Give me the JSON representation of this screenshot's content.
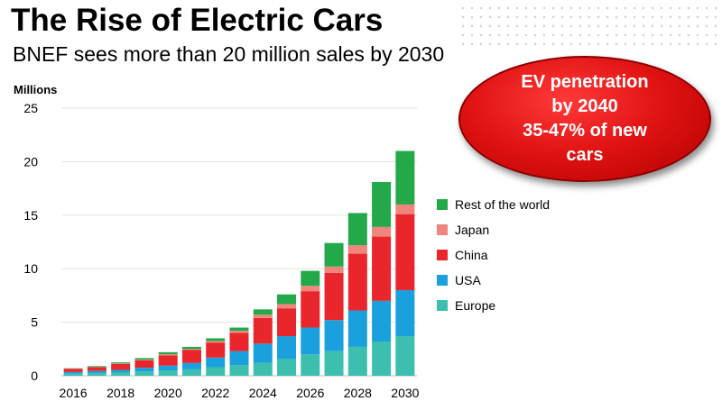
{
  "header": {
    "title": "The Rise of Electric Cars",
    "subtitle": "BNEF sees more than 20 million sales by 2030"
  },
  "callout": {
    "text": "EV penetration\nby 2040\n35-47% of new\ncars"
  },
  "chart_data": {
    "type": "bar",
    "stacked": true,
    "ylabel": "Millions",
    "ylim": [
      0,
      25
    ],
    "yticks": [
      0,
      5,
      10,
      15,
      20,
      25
    ],
    "grid": true,
    "legend_position": "right",
    "categories": [
      "2016",
      "2017",
      "2018",
      "2019",
      "2020",
      "2021",
      "2022",
      "2023",
      "2024",
      "2025",
      "2026",
      "2027",
      "2028",
      "2029",
      "2030"
    ],
    "x_tick_labels": [
      "2016",
      "2018",
      "2020",
      "2022",
      "2024",
      "2026",
      "2028",
      "2030"
    ],
    "series": [
      {
        "name": "Europe",
        "color": "#3cbfae",
        "values": [
          0.2,
          0.25,
          0.3,
          0.4,
          0.5,
          0.6,
          0.8,
          1.0,
          1.2,
          1.6,
          2.0,
          2.3,
          2.7,
          3.2,
          3.7
        ]
      },
      {
        "name": "USA",
        "color": "#1aa0dc",
        "values": [
          0.15,
          0.2,
          0.25,
          0.35,
          0.45,
          0.6,
          0.9,
          1.3,
          1.8,
          2.1,
          2.5,
          2.9,
          3.4,
          3.8,
          4.3
        ]
      },
      {
        "name": "China",
        "color": "#e8262b",
        "values": [
          0.3,
          0.35,
          0.55,
          0.7,
          0.95,
          1.2,
          1.4,
          1.7,
          2.4,
          2.6,
          3.4,
          4.4,
          5.3,
          6.0,
          7.1
        ]
      },
      {
        "name": "Japan",
        "color": "#f0857d",
        "values": [
          0.02,
          0.03,
          0.05,
          0.05,
          0.1,
          0.1,
          0.15,
          0.2,
          0.3,
          0.4,
          0.5,
          0.6,
          0.8,
          0.9,
          0.9
        ]
      },
      {
        "name": "Rest of the world",
        "color": "#23a84a",
        "values": [
          0.03,
          0.07,
          0.1,
          0.15,
          0.2,
          0.2,
          0.25,
          0.3,
          0.5,
          0.9,
          1.4,
          2.2,
          3.0,
          4.2,
          5.0
        ]
      }
    ]
  }
}
